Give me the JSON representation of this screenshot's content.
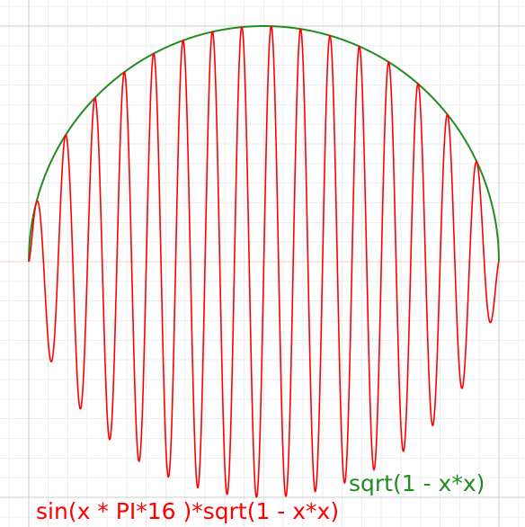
{
  "chart_data": {
    "type": "line",
    "xlim": [
      -1.0,
      1.0
    ],
    "ylim": [
      -1.05,
      1.0
    ],
    "grid": true,
    "series": [
      {
        "name": "sin(x * PI*16 )*sqrt(1 - x*x)",
        "color": "#ff0000",
        "formula": "sin(x * PI*16 )*sqrt(1 - x*x)",
        "x": [
          -1.0,
          -0.875,
          -0.75,
          -0.625,
          -0.5,
          -0.375,
          -0.25,
          -0.125,
          0.0,
          0.125,
          0.25,
          0.375,
          0.5,
          0.625,
          0.75,
          0.875,
          1.0
        ],
        "y": [
          0.0,
          0.0,
          0.0,
          0.0,
          0.0,
          0.0,
          0.0,
          0.0,
          0.0,
          0.0,
          0.0,
          0.0,
          0.0,
          0.0,
          0.0,
          0.0,
          0.0
        ]
      },
      {
        "name": "sqrt(1 - x*x)",
        "color": "#228b22",
        "formula": "sqrt(1 - x*x)",
        "x": [
          -1.0,
          -0.875,
          -0.75,
          -0.625,
          -0.5,
          -0.375,
          -0.25,
          -0.125,
          0.0,
          0.125,
          0.25,
          0.375,
          0.5,
          0.625,
          0.75,
          0.875,
          1.0
        ],
        "y": [
          0.0,
          0.484,
          0.661,
          0.781,
          0.866,
          0.927,
          0.968,
          0.992,
          1.0,
          0.992,
          0.968,
          0.927,
          0.866,
          0.781,
          0.661,
          0.484,
          0.0
        ]
      }
    ],
    "legend": [
      {
        "text": "sqrt(1 - x*x)",
        "color": "#228b22"
      },
      {
        "text": "sin(x * PI*16 )*sqrt(1 - x*x)",
        "color": "#ff0000"
      }
    ]
  }
}
